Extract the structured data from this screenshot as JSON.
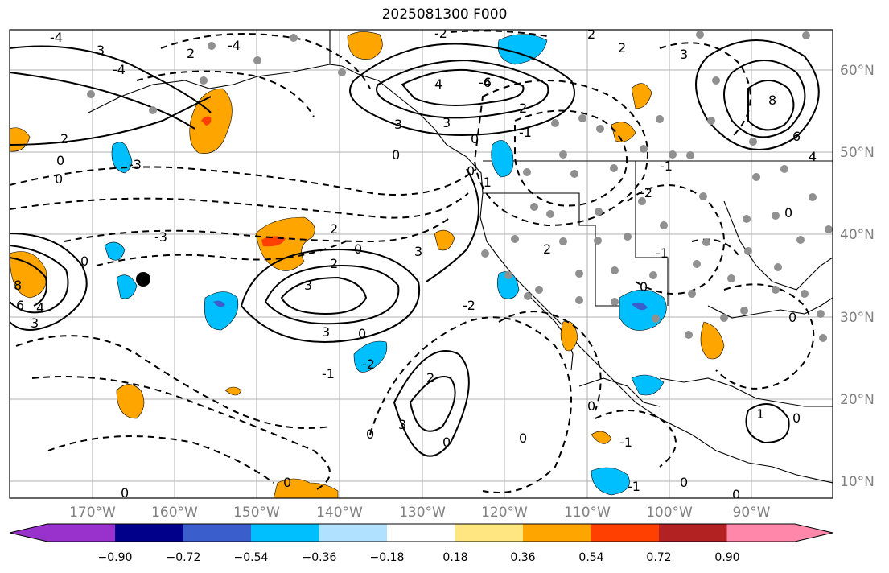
{
  "title": "2025081300 F000",
  "map": {
    "lon_labels": [
      "170°W",
      "160°W",
      "150°W",
      "140°W",
      "130°W",
      "120°W",
      "110°W",
      "100°W",
      "90°W"
    ],
    "lat_labels": [
      "60°N",
      "50°N",
      "40°N",
      "30°N",
      "20°N",
      "10°N"
    ],
    "contour_labels": [
      "4",
      "3",
      "2",
      "1",
      "0",
      "-1",
      "-2",
      "-3",
      "-4",
      "6",
      "8",
      "-6"
    ]
  },
  "colorbar": {
    "colors": [
      "#9932cc",
      "#00008b",
      "#3a5fcd",
      "#00bfff",
      "#b0e2ff",
      "#ffffff",
      "#ffe680",
      "#ffa500",
      "#ff4000",
      "#b22222",
      "#ff88aa"
    ],
    "tick_labels": [
      "−0.90",
      "−0.72",
      "−0.54",
      "−0.36",
      "−0.18",
      "0.18",
      "0.36",
      "0.54",
      "0.72",
      "0.90"
    ]
  }
}
